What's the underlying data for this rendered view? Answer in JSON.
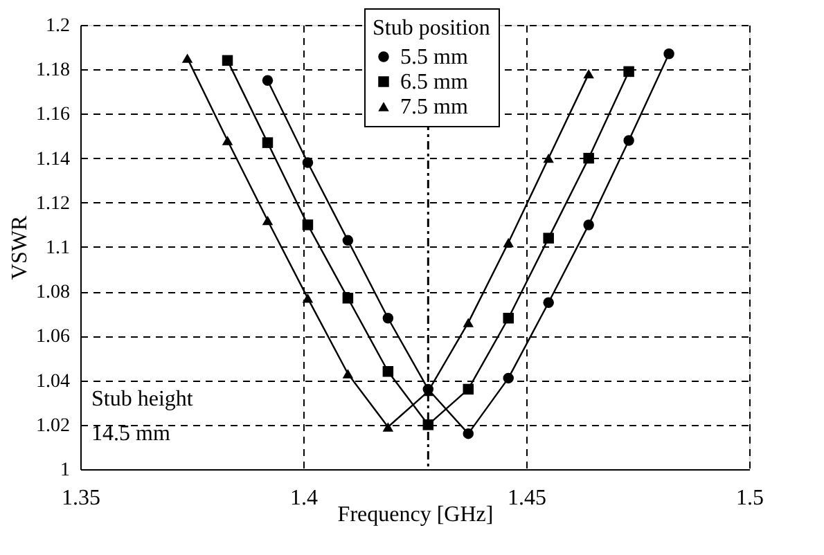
{
  "chart_data": {
    "type": "line",
    "xlabel": "Frequency [GHz]",
    "ylabel": "VSWR",
    "legend_title": "Stub position",
    "xlim": [
      1.35,
      1.5
    ],
    "xticks": [
      1.35,
      1.4,
      1.45,
      1.5
    ],
    "ylim": [
      1,
      1.2
    ],
    "yticks": [
      1,
      1.02,
      1.04,
      1.06,
      1.08,
      1.1,
      1.12,
      1.14,
      1.16,
      1.18,
      1.2
    ],
    "grid": true,
    "legend": "top",
    "line_style": "solid",
    "series": [
      {
        "name": "5.5 mm",
        "color": "#000000",
        "marker": "circle",
        "x": [
          1.392,
          1.401,
          1.41,
          1.419,
          1.428,
          1.437,
          1.446,
          1.455,
          1.464,
          1.473,
          1.482
        ],
        "values": [
          1.175,
          1.138,
          1.103,
          1.068,
          1.036,
          1.016,
          1.041,
          1.075,
          1.11,
          1.148,
          1.187
        ]
      },
      {
        "name": "6.5 mm",
        "color": "#000000",
        "marker": "square",
        "x": [
          1.383,
          1.392,
          1.401,
          1.41,
          1.419,
          1.428,
          1.437,
          1.446,
          1.455,
          1.464,
          1.473
        ],
        "values": [
          1.184,
          1.147,
          1.11,
          1.077,
          1.044,
          1.02,
          1.036,
          1.068,
          1.104,
          1.14,
          1.179
        ]
      },
      {
        "name": "7.5 mm",
        "color": "#000000",
        "marker": "triangle",
        "x": [
          1.374,
          1.383,
          1.392,
          1.401,
          1.41,
          1.419,
          1.428,
          1.437,
          1.446,
          1.455,
          1.464
        ],
        "values": [
          1.185,
          1.148,
          1.112,
          1.077,
          1.043,
          1.019,
          1.035,
          1.066,
          1.102,
          1.14,
          1.178
        ]
      }
    ],
    "ref_lines": [
      {
        "axis": "x",
        "value": 1.428,
        "line_style": "dashdot",
        "color": "#000000"
      }
    ],
    "annotations": [
      "Stub height",
      "14.5 mm"
    ]
  }
}
